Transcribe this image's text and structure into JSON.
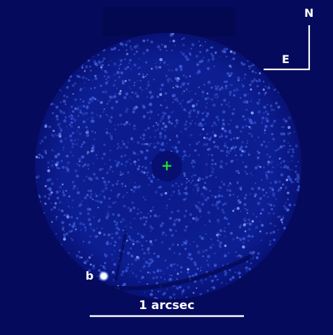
{
  "image": {
    "background_color": "#050a5c",
    "speckle_color": "#3a5ad8",
    "speckle_bright_color": "#8fa6ff"
  },
  "compass": {
    "north_label": "N",
    "east_label": "E",
    "color": "#ffffff"
  },
  "target": {
    "marker": "+",
    "marker_color": "#22e02a"
  },
  "companion": {
    "label": "b",
    "color": "#ffffff"
  },
  "scale_bar": {
    "label": "1 arcsec",
    "color": "#ffffff"
  }
}
